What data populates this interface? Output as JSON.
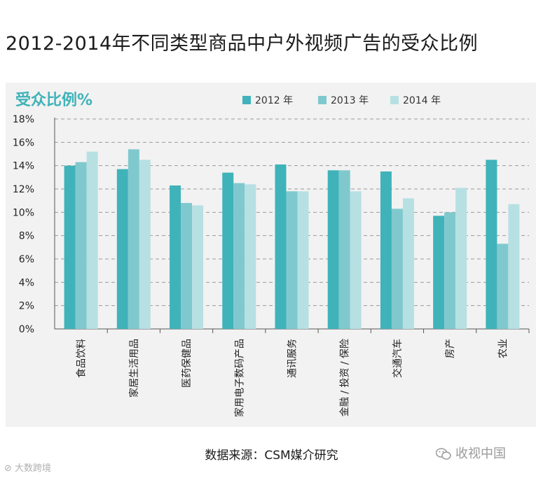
{
  "page": {
    "title": "2012-2014年不同类型商品中户外视频广告的受众比例",
    "source": "数据来源：CSM媒介研究",
    "watermark_right": "收视中国",
    "watermark_left": "大数跨境"
  },
  "chart_data": {
    "type": "bar",
    "title": "受众比例%",
    "xlabel": "",
    "ylabel": "",
    "ylim": [
      0,
      18
    ],
    "yticks": [
      "0%",
      "2%",
      "4%",
      "6%",
      "8%",
      "10%",
      "12%",
      "14%",
      "16%",
      "18%"
    ],
    "grid": true,
    "legend_position": "top-right",
    "categories": [
      "食品饮料",
      "家居生活用品",
      "医药保健品",
      "家用电子数码产品",
      "通讯服务",
      "金融 / 投资 / 保险",
      "交通汽车",
      "房产",
      "农业"
    ],
    "series": [
      {
        "name": "2012 年",
        "color": "#3fb3b9",
        "values": [
          14.0,
          13.7,
          12.3,
          13.4,
          14.1,
          13.6,
          13.5,
          9.7,
          14.5
        ]
      },
      {
        "name": "2013 年",
        "color": "#7fc9ce",
        "values": [
          14.3,
          15.4,
          10.8,
          12.5,
          11.8,
          13.6,
          10.3,
          10.0,
          7.3
        ]
      },
      {
        "name": "2014 年",
        "color": "#b7e0e3",
        "values": [
          15.2,
          14.5,
          10.6,
          12.4,
          11.8,
          11.8,
          11.2,
          12.1,
          10.7
        ]
      }
    ]
  }
}
